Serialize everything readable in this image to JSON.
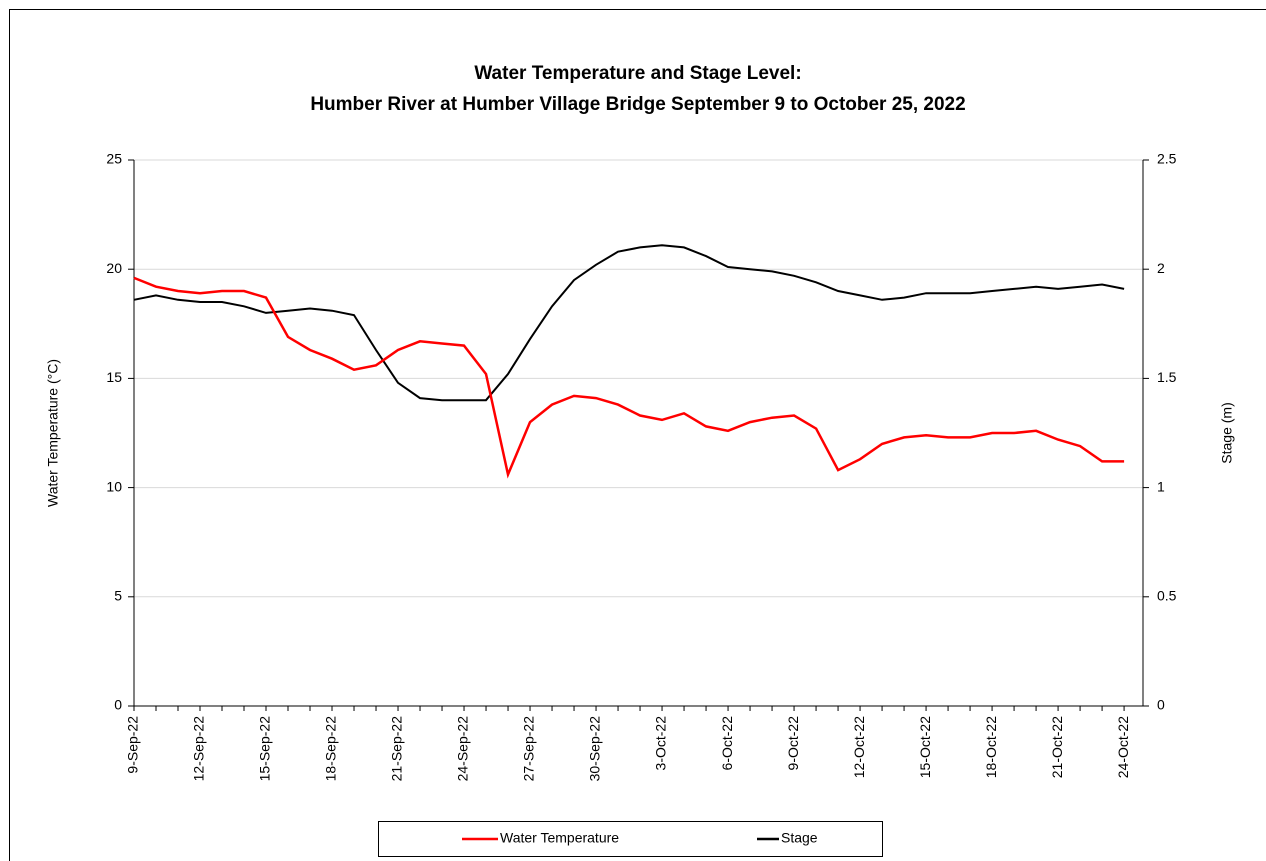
{
  "chart_data": {
    "type": "line",
    "title": [
      "Water Temperature and Stage Level:",
      "Humber River at Humber Village Bridge September 9 to October 25, 2022"
    ],
    "y_label": "Water Temperature (°C)",
    "y2_label": "Stage (m)",
    "categories": [
      "9-Sep-22",
      null,
      null,
      "12-Sep-22",
      null,
      null,
      "15-Sep-22",
      null,
      null,
      "18-Sep-22",
      null,
      null,
      "21-Sep-22",
      null,
      null,
      "24-Sep-22",
      null,
      null,
      "27-Sep-22",
      null,
      null,
      "30-Sep-22",
      null,
      null,
      "3-Oct-22",
      null,
      null,
      "6-Oct-22",
      null,
      null,
      "9-Oct-22",
      null,
      null,
      "12-Oct-22",
      null,
      null,
      "15-Oct-22",
      null,
      null,
      "18-Oct-22",
      null,
      null,
      "21-Oct-22",
      null,
      null,
      "24-Oct-22"
    ],
    "series": [
      {
        "name": "Water Temperature",
        "color": "#ff0000",
        "axis": "y",
        "values": [
          19.6,
          19.2,
          19.0,
          18.9,
          19.0,
          19.0,
          18.7,
          16.9,
          16.3,
          15.9,
          15.4,
          15.6,
          16.3,
          16.7,
          16.6,
          16.5,
          15.2,
          10.6,
          13.0,
          13.8,
          14.2,
          14.1,
          13.8,
          13.3,
          13.1,
          13.4,
          12.8,
          12.6,
          13.0,
          13.2,
          13.3,
          12.7,
          10.8,
          11.3,
          12.0,
          12.3,
          12.4,
          12.3,
          12.3,
          12.5,
          12.5,
          12.6,
          12.2,
          11.9,
          11.2,
          11.2
        ]
      },
      {
        "name": "Stage",
        "color": "#000000",
        "axis": "y2",
        "values": [
          1.86,
          1.88,
          1.86,
          1.85,
          1.85,
          1.83,
          1.8,
          1.81,
          1.82,
          1.81,
          1.79,
          1.63,
          1.48,
          1.41,
          1.4,
          1.4,
          1.4,
          1.52,
          1.68,
          1.83,
          1.95,
          2.02,
          2.08,
          2.1,
          2.11,
          2.1,
          2.06,
          2.01,
          2.0,
          1.99,
          1.97,
          1.94,
          1.9,
          1.88,
          1.86,
          1.87,
          1.89,
          1.89,
          1.89,
          1.9,
          1.91,
          1.92,
          1.91,
          1.92,
          1.93,
          1.91
        ]
      }
    ],
    "ylim": [
      0,
      25
    ],
    "yticks": [
      0,
      5,
      10,
      15,
      20,
      25
    ],
    "y2lim": [
      0,
      2.5
    ],
    "y2ticks": [
      0,
      0.5,
      1,
      1.5,
      2,
      2.5
    ],
    "grid": true,
    "legend": "bottom"
  }
}
